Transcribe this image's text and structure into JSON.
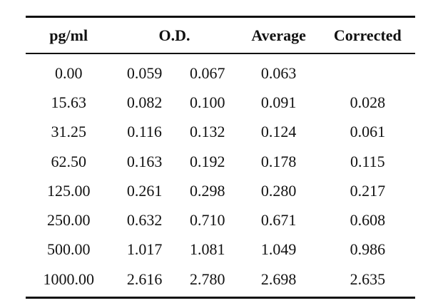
{
  "table": {
    "headers": {
      "concentration": "pg/ml",
      "od": "O.D.",
      "average": "Average",
      "corrected": "Corrected"
    },
    "rows": [
      {
        "conc": "0.00",
        "od1": "0.059",
        "od2": "0.067",
        "avg": "0.063",
        "corrected": ""
      },
      {
        "conc": "15.63",
        "od1": "0.082",
        "od2": "0.100",
        "avg": "0.091",
        "corrected": "0.028"
      },
      {
        "conc": "31.25",
        "od1": "0.116",
        "od2": "0.132",
        "avg": "0.124",
        "corrected": "0.061"
      },
      {
        "conc": "62.50",
        "od1": "0.163",
        "od2": "0.192",
        "avg": "0.178",
        "corrected": "0.115"
      },
      {
        "conc": "125.00",
        "od1": "0.261",
        "od2": "0.298",
        "avg": "0.280",
        "corrected": "0.217"
      },
      {
        "conc": "250.00",
        "od1": "0.632",
        "od2": "0.710",
        "avg": "0.671",
        "corrected": "0.608"
      },
      {
        "conc": "500.00",
        "od1": "1.017",
        "od2": "1.081",
        "avg": "1.049",
        "corrected": "0.986"
      },
      {
        "conc": "1000.00",
        "od1": "2.616",
        "od2": "2.780",
        "avg": "2.698",
        "corrected": "2.635"
      }
    ]
  }
}
